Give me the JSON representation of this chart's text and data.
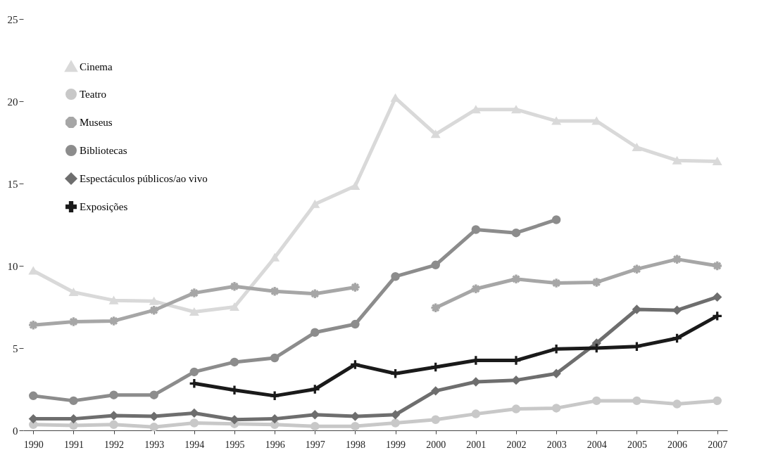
{
  "chart_data": {
    "type": "line",
    "categories": [
      "1990",
      "1991",
      "1992",
      "1993",
      "1994",
      "1995",
      "1996",
      "1997",
      "1998",
      "1999",
      "2000",
      "2001",
      "2002",
      "2003",
      "2004",
      "2005",
      "2006",
      "2007"
    ],
    "ylim": [
      0,
      25
    ],
    "yticks": [
      0,
      5,
      10,
      15,
      20,
      25
    ],
    "grid": false,
    "legend": "top left",
    "series": [
      {
        "name": "Cinema",
        "color": "#d9d9d9",
        "marker": "triangle",
        "values": [
          9.7,
          8.4,
          7.9,
          7.85,
          7.2,
          7.5,
          10.5,
          13.75,
          14.85,
          20.2,
          18.0,
          19.5,
          19.5,
          18.8,
          18.8,
          17.2,
          16.4,
          16.35
        ]
      },
      {
        "name": "Teatro",
        "color": "#c8c8c8",
        "marker": "circle",
        "values": [
          0.35,
          0.3,
          0.35,
          0.2,
          0.45,
          0.4,
          0.35,
          0.25,
          0.25,
          0.45,
          0.65,
          1.0,
          1.3,
          1.35,
          1.8,
          1.8,
          1.6,
          1.8
        ]
      },
      {
        "name": "Museus",
        "color": "#a6a6a6",
        "marker": "star",
        "values": [
          6.4,
          6.6,
          6.65,
          7.3,
          8.35,
          8.75,
          8.45,
          8.3,
          8.7,
          null,
          7.45,
          8.6,
          9.2,
          8.95,
          9.0,
          9.8,
          10.4,
          10.0
        ]
      },
      {
        "name": "Bibliotecas",
        "color": "#8c8c8c",
        "marker": "circle",
        "values": [
          2.1,
          1.8,
          2.15,
          2.15,
          3.55,
          4.15,
          4.4,
          5.95,
          6.45,
          9.35,
          10.05,
          12.2,
          12.0,
          12.8,
          null,
          null,
          null,
          null
        ]
      },
      {
        "name": "Espectáculos públicos/ao vivo",
        "color": "#6e6e6e",
        "marker": "diamond",
        "values": [
          0.7,
          0.7,
          0.9,
          0.85,
          1.05,
          0.65,
          0.7,
          0.95,
          0.85,
          0.95,
          2.4,
          2.95,
          3.05,
          3.45,
          5.3,
          7.35,
          7.3,
          8.1
        ]
      },
      {
        "name": "Exposições",
        "color": "#1a1a1a",
        "marker": "cross",
        "values": [
          null,
          null,
          null,
          null,
          2.85,
          2.45,
          2.1,
          2.5,
          4.0,
          3.45,
          3.85,
          4.25,
          4.25,
          4.95,
          5.0,
          5.1,
          5.6,
          6.95
        ]
      }
    ]
  }
}
